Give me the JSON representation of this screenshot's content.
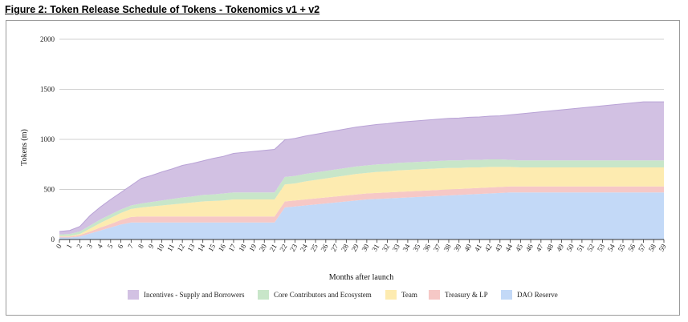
{
  "figure": {
    "title": "Figure 2: Token Release Schedule of Tokens - Tokenomics v1 + v2"
  },
  "chart_data": {
    "type": "area",
    "stacked": true,
    "title": "Figure 2: Token Release Schedule of Tokens - Tokenomics v1 + v2",
    "xlabel": "Months after launch",
    "ylabel": "Tokens (m)",
    "ylim": [
      0,
      2000
    ],
    "yticks": [
      0,
      500,
      1000,
      1500,
      2000
    ],
    "grid": true,
    "legend_position": "bottom",
    "x": [
      0,
      1,
      2,
      3,
      4,
      5,
      6,
      7,
      8,
      9,
      10,
      11,
      12,
      13,
      14,
      15,
      16,
      17,
      18,
      19,
      20,
      21,
      22,
      23,
      24,
      25,
      26,
      27,
      28,
      29,
      30,
      31,
      32,
      33,
      34,
      35,
      36,
      37,
      38,
      39,
      40,
      41,
      42,
      43,
      44,
      45,
      46,
      47,
      48,
      49,
      50,
      51,
      52,
      53,
      54,
      55,
      56,
      57,
      58,
      59
    ],
    "series": [
      {
        "name": "DAO Reserve",
        "color": "#c3d9f7",
        "values": [
          20,
          20,
          30,
          60,
          90,
          120,
          150,
          170,
          170,
          170,
          170,
          170,
          170,
          170,
          170,
          170,
          170,
          170,
          170,
          170,
          170,
          170,
          320,
          330,
          340,
          350,
          360,
          370,
          380,
          390,
          400,
          405,
          410,
          415,
          420,
          425,
          430,
          435,
          440,
          445,
          450,
          455,
          460,
          465,
          470,
          470,
          470,
          470,
          470,
          470,
          470,
          470,
          470,
          470,
          470,
          470,
          470,
          470,
          470,
          470
        ]
      },
      {
        "name": "Treasury & LP",
        "color": "#f6c8c6",
        "values": [
          10,
          10,
          15,
          20,
          30,
          35,
          45,
          55,
          60,
          60,
          60,
          60,
          60,
          60,
          60,
          60,
          60,
          60,
          60,
          60,
          60,
          60,
          60,
          60,
          60,
          60,
          60,
          60,
          60,
          60,
          60,
          60,
          60,
          60,
          60,
          60,
          60,
          60,
          60,
          60,
          60,
          60,
          60,
          60,
          60,
          60,
          60,
          60,
          60,
          60,
          60,
          60,
          60,
          60,
          60,
          60,
          60,
          60,
          60,
          60
        ]
      },
      {
        "name": "Team",
        "color": "#fdebb0",
        "values": [
          5,
          5,
          10,
          30,
          45,
          60,
          70,
          80,
          90,
          100,
          110,
          120,
          130,
          140,
          150,
          155,
          160,
          170,
          170,
          170,
          170,
          170,
          170,
          170,
          180,
          185,
          190,
          195,
          200,
          205,
          205,
          210,
          210,
          215,
          215,
          215,
          215,
          215,
          215,
          210,
          210,
          205,
          205,
          200,
          195,
          190,
          190,
          190,
          190,
          190,
          190,
          190,
          190,
          190,
          190,
          190,
          190,
          190,
          190,
          190
        ]
      },
      {
        "name": "Core Contributors and Ecosystem",
        "color": "#c8e6c9",
        "values": [
          15,
          20,
          25,
          30,
          35,
          35,
          35,
          35,
          40,
          45,
          50,
          55,
          60,
          60,
          65,
          65,
          70,
          70,
          70,
          70,
          70,
          70,
          75,
          75,
          75,
          75,
          75,
          75,
          75,
          75,
          75,
          75,
          75,
          75,
          75,
          75,
          75,
          75,
          75,
          75,
          75,
          75,
          75,
          75,
          70,
          70,
          70,
          70,
          70,
          70,
          70,
          70,
          70,
          70,
          70,
          70,
          70,
          70,
          70,
          70
        ]
      },
      {
        "name": "Incentives - Supply and Borrowers",
        "color": "#d2c1e3",
        "values": [
          30,
          35,
          50,
          100,
          125,
          150,
          170,
          200,
          250,
          265,
          285,
          300,
          320,
          330,
          340,
          360,
          370,
          390,
          400,
          410,
          420,
          430,
          370,
          375,
          378,
          381,
          384,
          387,
          390,
          393,
          396,
          399,
          402,
          405,
          408,
          411,
          414,
          417,
          420,
          423,
          426,
          429,
          432,
          435,
          450,
          465,
          475,
          485,
          495,
          505,
          515,
          525,
          535,
          545,
          555,
          565,
          575,
          585,
          585,
          585
        ]
      }
    ],
    "legend": [
      "Incentives - Supply and Borrowers",
      "Core Contributors and Ecosystem",
      "Team",
      "Treasury & LP",
      "DAO Reserve"
    ]
  }
}
